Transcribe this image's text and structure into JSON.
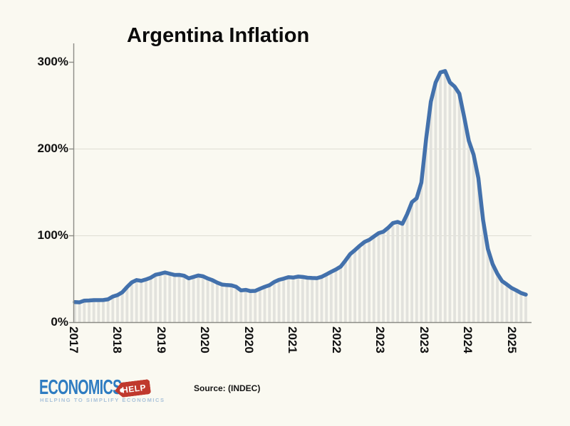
{
  "page": {
    "background": "#FAF9F1"
  },
  "title": "Argentina Inflation",
  "source_note": "Source: (INDEC)",
  "logo": {
    "brand": "ECONOMICS",
    "tag": "HELP",
    "tagline": "HELPING TO SIMPLIFY ECONOMICS",
    "brand_color": "#2E7CC1",
    "tag_color": "#C0392E",
    "tagline_color": "#A9C2DA"
  },
  "chart_data": {
    "type": "area",
    "title": "Argentina Inflation",
    "xlabel": "",
    "ylabel": "",
    "ylim": [
      0,
      321
    ],
    "grid": "horizontal-faint",
    "legend": "none",
    "line_color": "#4371AC",
    "bar_fill": "#E2E2DD",
    "grid_color": "#DEDDD3",
    "axis_color": "#8C8C86",
    "text_color": "#111111",
    "y_tick_values": [
      0,
      100,
      200,
      300
    ],
    "y_tick_labels": [
      "0%",
      "100%",
      "200%",
      "300%"
    ],
    "grid_values": [
      100,
      200
    ],
    "x_tick_labels": [
      "2017",
      "2018",
      "2019",
      "2020",
      "2020",
      "2021",
      "2022",
      "2023",
      "2023",
      "2024",
      "2025"
    ],
    "x": [
      "2017-10",
      "2017-11",
      "2017-12",
      "2018-01",
      "2018-02",
      "2018-03",
      "2018-04",
      "2018-05",
      "2018-06",
      "2018-07",
      "2018-08",
      "2018-09",
      "2018-10",
      "2018-11",
      "2018-12",
      "2019-01",
      "2019-02",
      "2019-03",
      "2019-04",
      "2019-05",
      "2019-06",
      "2019-07",
      "2019-08",
      "2019-09",
      "2019-10",
      "2019-11",
      "2019-12",
      "2020-01",
      "2020-02",
      "2020-03",
      "2020-04",
      "2020-05",
      "2020-06",
      "2020-07",
      "2020-08",
      "2020-09",
      "2020-10",
      "2020-11",
      "2020-12",
      "2021-01",
      "2021-02",
      "2021-03",
      "2021-04",
      "2021-05",
      "2021-06",
      "2021-07",
      "2021-08",
      "2021-09",
      "2021-10",
      "2021-11",
      "2021-12",
      "2022-01",
      "2022-02",
      "2022-03",
      "2022-04",
      "2022-05",
      "2022-06",
      "2022-07",
      "2022-08",
      "2022-09",
      "2022-10",
      "2022-11",
      "2022-12",
      "2023-01",
      "2023-02",
      "2023-03",
      "2023-04",
      "2023-05",
      "2023-06",
      "2023-07",
      "2023-08",
      "2023-09",
      "2023-10",
      "2023-11",
      "2023-12",
      "2024-01",
      "2024-02",
      "2024-03",
      "2024-04",
      "2024-05",
      "2024-06",
      "2024-07",
      "2024-08",
      "2024-09",
      "2024-10",
      "2024-11",
      "2024-12",
      "2025-01",
      "2025-02",
      "2025-03",
      "2025-04",
      "2025-05",
      "2025-06",
      "2025-07",
      "2025-08",
      "2025-09"
    ],
    "values": [
      23.1,
      22.9,
      24.8,
      25.0,
      25.4,
      25.4,
      25.5,
      26.3,
      29.5,
      31.2,
      34.4,
      40.5,
      45.9,
      48.5,
      47.6,
      49.3,
      51.3,
      54.7,
      55.8,
      57.3,
      55.8,
      54.4,
      54.5,
      53.5,
      50.5,
      52.1,
      53.8,
      52.9,
      50.3,
      48.4,
      45.6,
      43.4,
      42.8,
      42.4,
      40.7,
      36.6,
      37.2,
      35.8,
      36.1,
      38.5,
      40.7,
      42.6,
      46.3,
      48.8,
      50.2,
      51.8,
      51.4,
      52.5,
      52.1,
      51.2,
      50.9,
      50.7,
      52.3,
      55.1,
      58.0,
      60.7,
      64.0,
      71.0,
      78.5,
      83.0,
      88.0,
      92.4,
      94.8,
      98.8,
      102.5,
      104.3,
      108.8,
      114.2,
      115.6,
      113.4,
      124.4,
      138.3,
      142.7,
      160.9,
      211.4,
      254.2,
      276.2,
      287.9,
      289.4,
      276.4,
      271.5,
      263.4,
      236.7,
      209.0,
      193.0,
      166.0,
      117.8,
      84.5,
      66.9,
      55.9,
      47.3,
      43.5,
      39.4,
      36.6,
      33.6,
      31.8
    ]
  }
}
